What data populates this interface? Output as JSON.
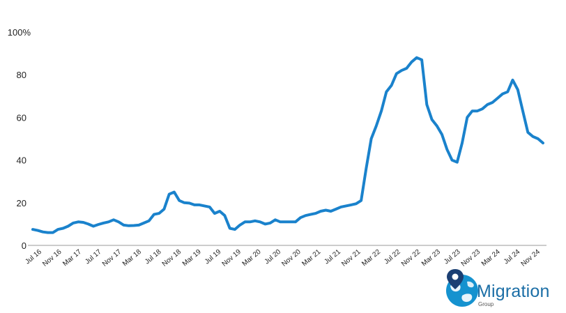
{
  "chart_data": {
    "type": "line",
    "title": "",
    "xlabel": "",
    "ylabel": "",
    "ylim": [
      0,
      100
    ],
    "y_ticks": [
      0,
      20,
      40,
      60,
      80
    ],
    "y_top_label": "100%",
    "grid": false,
    "line_color": "#1a82cc",
    "x_tick_labels": [
      "Jul 16",
      "Nov 16",
      "Mar 17",
      "Jul 17",
      "Nov 17",
      "Mar 18",
      "Jul 18",
      "Nov 18",
      "Mar 19",
      "Jul 19",
      "Nov 19",
      "Mar 20",
      "Jul 20",
      "Nov 20",
      "Mar 21",
      "Jul 21",
      "Nov 21",
      "Mar 22",
      "Jul 22",
      "Nov 22",
      "Mar 23",
      "Jul 23",
      "Nov 23",
      "Mar 24",
      "Jul 24",
      "Nov 24"
    ],
    "series": [
      {
        "values": [
          7.5,
          7,
          6.3,
          6,
          6,
          7.5,
          8,
          9,
          10.5,
          11,
          10.8,
          10,
          9,
          9.8,
          10.5,
          11,
          12,
          11,
          9.5,
          9.2,
          9.3,
          9.5,
          10.5,
          11.5,
          14.5,
          15,
          17,
          24,
          25,
          21,
          20,
          19.8,
          19,
          19,
          18.5,
          18,
          15,
          16,
          14,
          8,
          7.5,
          9.5,
          11,
          11,
          11.5,
          11,
          10,
          10.5,
          12,
          11,
          11,
          11,
          11,
          13,
          14,
          14.5,
          15,
          16,
          16.5,
          16,
          17,
          18,
          18.5,
          19,
          19.5,
          21,
          36,
          50,
          56,
          63,
          72,
          75,
          80.5,
          82,
          83,
          86,
          88,
          87,
          66,
          59,
          56,
          52,
          45,
          40,
          39,
          48,
          60,
          63,
          63,
          64,
          66,
          67,
          69,
          71,
          72,
          77.5,
          73,
          63,
          53,
          51,
          50,
          48
        ]
      }
    ]
  },
  "logo": {
    "brand": "Migration",
    "sub": "Group"
  },
  "colors": {
    "axis": "#9a9a9a",
    "brand_blue": "#1592cf",
    "brand_dark": "#1b6ea6",
    "text": "#222222"
  }
}
